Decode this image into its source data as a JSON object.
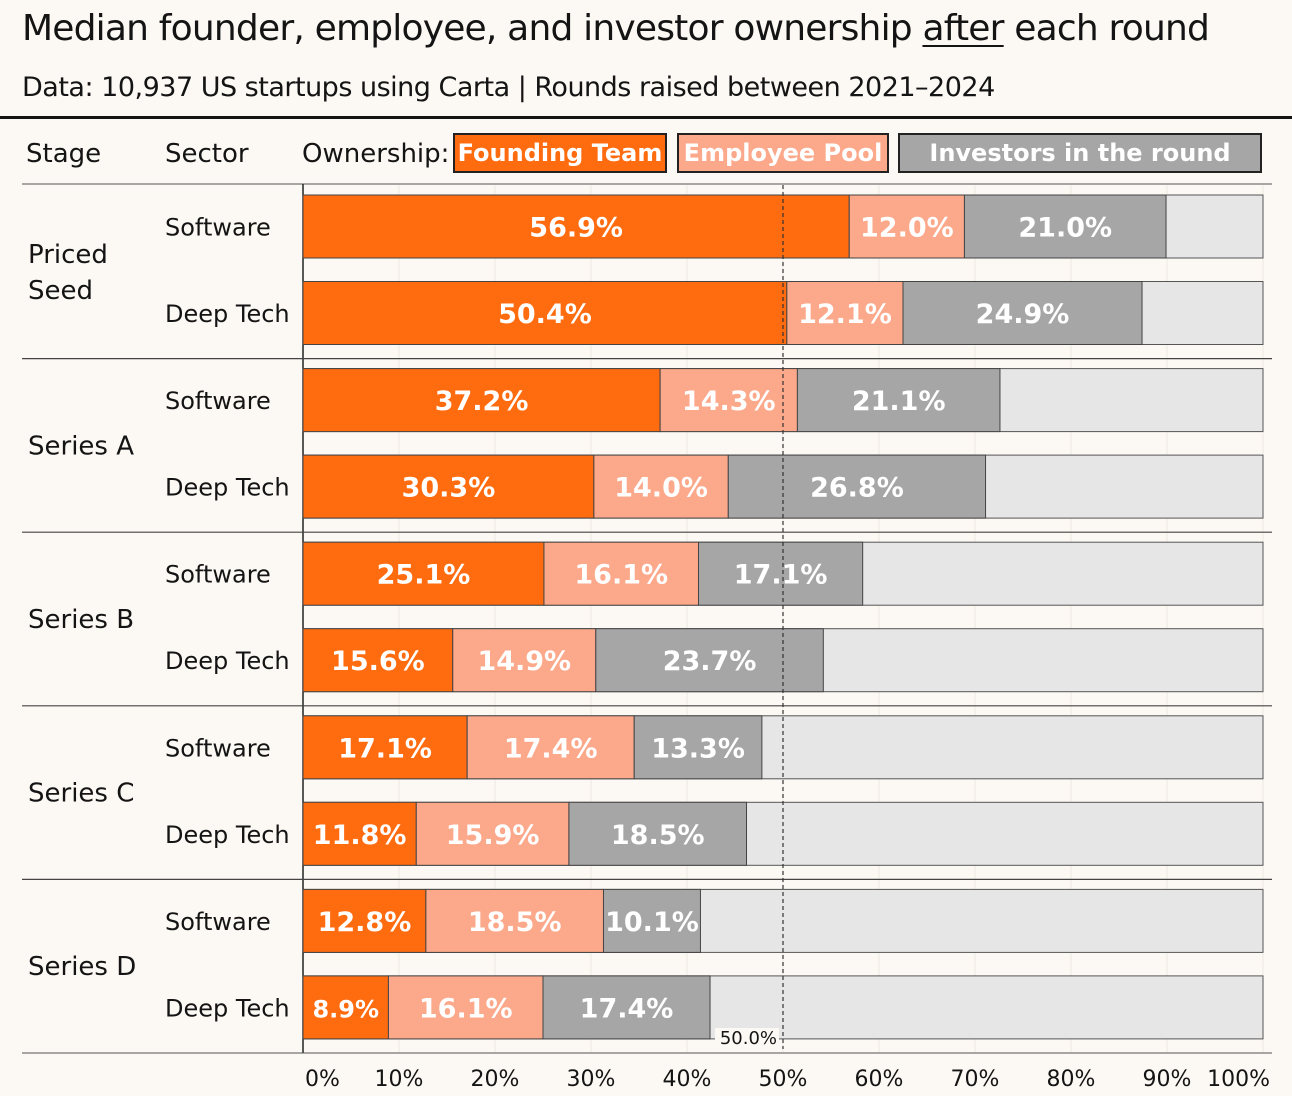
{
  "title": {
    "before": "Median founder, employee, and investor ownership ",
    "emph": "after",
    "after": " each round"
  },
  "subtitle": "Data: 10,937 US startups using Carta | Rounds raised between 2021–2024",
  "header": {
    "stage": "Stage",
    "sector": "Sector",
    "ownership": "Ownership:"
  },
  "colors": {
    "founding": "#ff6b0f",
    "employee": "#fca88a",
    "investors": "#a6a6a6",
    "remainder": "#e6e6e6",
    "background": "#fcf8f3"
  },
  "chart_data": {
    "type": "bar",
    "orientation": "horizontal-stacked",
    "title": "Median founder, employee, and investor ownership after each round",
    "series": [
      {
        "name": "Founding Team",
        "color": "#ff6b0f"
      },
      {
        "name": "Employee Pool",
        "color": "#fca88a"
      },
      {
        "name": "Investors in the round",
        "color": "#a6a6a6"
      }
    ],
    "groups": [
      {
        "stage": "Priced Seed",
        "rows": [
          {
            "sector": "Software",
            "values": [
              56.9,
              12.0,
              21.0
            ]
          },
          {
            "sector": "Deep Tech",
            "values": [
              50.4,
              12.1,
              24.9
            ]
          }
        ]
      },
      {
        "stage": "Series A",
        "rows": [
          {
            "sector": "Software",
            "values": [
              37.2,
              14.3,
              21.1
            ]
          },
          {
            "sector": "Deep Tech",
            "values": [
              30.3,
              14.0,
              26.8
            ]
          }
        ]
      },
      {
        "stage": "Series B",
        "rows": [
          {
            "sector": "Software",
            "values": [
              25.1,
              16.1,
              17.1
            ]
          },
          {
            "sector": "Deep Tech",
            "values": [
              15.6,
              14.9,
              23.7
            ]
          }
        ]
      },
      {
        "stage": "Series C",
        "rows": [
          {
            "sector": "Software",
            "values": [
              17.1,
              17.4,
              13.3
            ]
          },
          {
            "sector": "Deep Tech",
            "values": [
              11.8,
              15.9,
              18.5
            ]
          }
        ]
      },
      {
        "stage": "Series D",
        "rows": [
          {
            "sector": "Software",
            "values": [
              12.8,
              18.5,
              10.1
            ]
          },
          {
            "sector": "Deep Tech",
            "values": [
              8.9,
              16.1,
              17.4
            ]
          }
        ]
      }
    ],
    "xlim": [
      0,
      100
    ],
    "xticks": [
      "0%",
      "10%",
      "20%",
      "30%",
      "40%",
      "50%",
      "60%",
      "70%",
      "80%",
      "90%",
      "100%"
    ],
    "reference_line": {
      "value": 50,
      "label": "50.0%"
    }
  }
}
